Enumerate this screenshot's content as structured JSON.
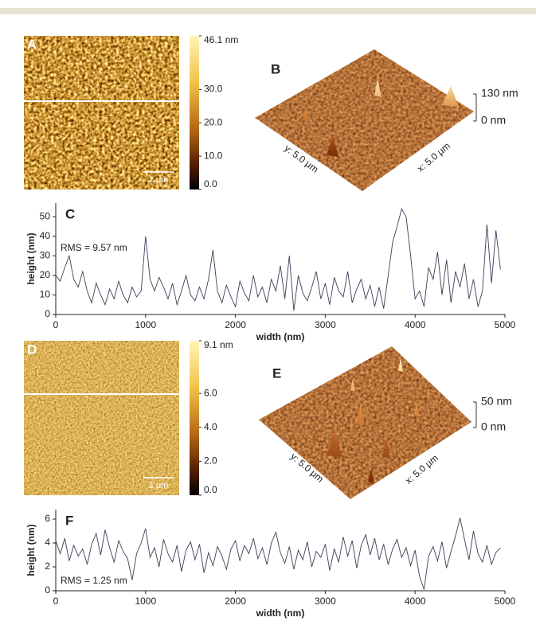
{
  "images": [
    {
      "label": "A",
      "scale_bar": "1 μm",
      "colorbar": {
        "lim": [
          0,
          46.1
        ],
        "ticks": [
          {
            "value": 46.1,
            "label": "46.1 nm"
          },
          {
            "value": 30,
            "label": "30.0"
          },
          {
            "value": 20,
            "label": "20.0"
          },
          {
            "value": 10,
            "label": "10.0"
          },
          {
            "value": 0,
            "label": "0.0"
          }
        ]
      }
    },
    {
      "label": "D",
      "scale_bar": "1 μm",
      "colorbar": {
        "lim": [
          0,
          9.1
        ],
        "ticks": [
          {
            "value": 9.1,
            "label": "9.1 nm"
          },
          {
            "value": 6,
            "label": "6.0"
          },
          {
            "value": 4,
            "label": "4.0"
          },
          {
            "value": 2,
            "label": "2.0"
          },
          {
            "value": 0,
            "label": "0.0"
          }
        ]
      }
    }
  ],
  "surfaces": [
    {
      "label": "B",
      "zlim": [
        0,
        130
      ],
      "zticks": [
        {
          "value": 130,
          "label": "130 nm"
        },
        {
          "value": 0,
          "label": "0 nm"
        }
      ],
      "x_label": "x: 5.0 μm",
      "y_label": "y: 5.0 μm"
    },
    {
      "label": "E",
      "zlim": [
        0,
        50
      ],
      "zticks": [
        {
          "value": 50,
          "label": "50 nm"
        },
        {
          "value": 0,
          "label": "0 nm"
        }
      ],
      "x_label": "x: 5.0 μm",
      "y_label": "y: 5.0 μm"
    }
  ],
  "chart_data": [
    {
      "type": "line",
      "label": "C",
      "annotation": "RMS = 9.57 nm",
      "xlabel": "width (nm)",
      "ylabel": "height (nm)",
      "color": "#3a3f55",
      "xlim": [
        0,
        5000
      ],
      "xticks": [
        0,
        1000,
        2000,
        3000,
        4000,
        5000
      ],
      "ylim": [
        0,
        57
      ],
      "yticks": [
        0,
        10,
        20,
        30,
        40,
        50
      ],
      "x": [
        0,
        50,
        100,
        150,
        200,
        250,
        300,
        350,
        400,
        450,
        500,
        550,
        600,
        650,
        700,
        750,
        800,
        850,
        900,
        950,
        1000,
        1050,
        1100,
        1150,
        1200,
        1250,
        1300,
        1350,
        1400,
        1450,
        1500,
        1550,
        1600,
        1650,
        1700,
        1750,
        1800,
        1850,
        1900,
        1950,
        2000,
        2050,
        2100,
        2150,
        2200,
        2250,
        2300,
        2350,
        2400,
        2450,
        2500,
        2550,
        2600,
        2650,
        2700,
        2750,
        2800,
        2850,
        2900,
        2950,
        3000,
        3050,
        3100,
        3150,
        3200,
        3250,
        3300,
        3350,
        3400,
        3450,
        3500,
        3550,
        3600,
        3650,
        3700,
        3750,
        3800,
        3850,
        3900,
        3950,
        4000,
        4050,
        4100,
        4150,
        4200,
        4250,
        4300,
        4350,
        4400,
        4450,
        4500,
        4550,
        4600,
        4650,
        4700,
        4750,
        4800,
        4850,
        4900,
        4950
      ],
      "values": [
        20,
        17,
        24,
        30,
        18,
        14,
        22,
        12,
        6,
        16,
        10,
        5,
        13,
        8,
        17,
        10,
        6,
        14,
        9,
        12,
        40,
        18,
        12,
        19,
        14,
        8,
        16,
        5,
        12,
        20,
        10,
        7,
        14,
        8,
        18,
        33,
        12,
        6,
        15,
        9,
        4,
        17,
        11,
        7,
        20,
        9,
        14,
        6,
        18,
        12,
        25,
        8,
        30,
        2,
        20,
        11,
        7,
        14,
        22,
        8,
        16,
        5,
        19,
        12,
        9,
        22,
        6,
        13,
        18,
        8,
        15,
        4,
        14,
        3,
        20,
        37,
        45,
        54,
        50,
        30,
        8,
        12,
        4,
        24,
        18,
        32,
        10,
        28,
        6,
        22,
        14,
        26,
        8,
        18,
        4,
        12,
        46,
        16,
        43,
        23
      ]
    },
    {
      "type": "line",
      "label": "F",
      "annotation": "RMS = 1.25 nm",
      "xlabel": "width (nm)",
      "ylabel": "height (nm)",
      "color": "#3a3f55",
      "xlim": [
        0,
        5000
      ],
      "xticks": [
        0,
        1000,
        2000,
        3000,
        4000,
        5000
      ],
      "ylim": [
        0,
        6.8
      ],
      "yticks": [
        0,
        2,
        4,
        6
      ],
      "x": [
        0,
        50,
        100,
        150,
        200,
        250,
        300,
        350,
        400,
        450,
        500,
        550,
        600,
        650,
        700,
        750,
        800,
        850,
        900,
        950,
        1000,
        1050,
        1100,
        1150,
        1200,
        1250,
        1300,
        1350,
        1400,
        1450,
        1500,
        1550,
        1600,
        1650,
        1700,
        1750,
        1800,
        1850,
        1900,
        1950,
        2000,
        2050,
        2100,
        2150,
        2200,
        2250,
        2300,
        2350,
        2400,
        2450,
        2500,
        2550,
        2600,
        2650,
        2700,
        2750,
        2800,
        2850,
        2900,
        2950,
        3000,
        3050,
        3100,
        3150,
        3200,
        3250,
        3300,
        3350,
        3400,
        3450,
        3500,
        3550,
        3600,
        3650,
        3700,
        3750,
        3800,
        3850,
        3900,
        3950,
        4000,
        4050,
        4100,
        4150,
        4200,
        4250,
        4300,
        4350,
        4400,
        4450,
        4500,
        4550,
        4600,
        4650,
        4700,
        4750,
        4800,
        4850,
        4900,
        4950
      ],
      "values": [
        4.2,
        3.1,
        4.4,
        2.5,
        3.8,
        2.9,
        3.5,
        2.2,
        3.9,
        4.8,
        3.0,
        5.1,
        3.6,
        2.4,
        4.2,
        3.3,
        2.7,
        0.9,
        3.1,
        4.0,
        5.2,
        2.8,
        3.6,
        2.0,
        4.3,
        3.1,
        2.4,
        3.8,
        1.6,
        3.4,
        4.1,
        2.6,
        3.9,
        1.5,
        3.2,
        2.1,
        3.7,
        2.9,
        1.8,
        3.5,
        4.2,
        2.5,
        3.8,
        3.1,
        4.4,
        2.7,
        3.6,
        2.2,
        4.0,
        4.9,
        3.2,
        2.3,
        3.7,
        1.8,
        3.4,
        2.6,
        4.1,
        2.0,
        3.3,
        2.8,
        3.9,
        1.7,
        3.5,
        2.4,
        4.5,
        2.9,
        4.2,
        1.9,
        3.8,
        4.7,
        3.0,
        4.4,
        2.6,
        3.9,
        2.2,
        3.5,
        4.3,
        2.8,
        3.6,
        2.1,
        3.4,
        1.2,
        0.1,
        2.9,
        3.7,
        2.5,
        4.1,
        1.9,
        3.3,
        4.6,
        6.1,
        4.3,
        2.6,
        5.0,
        3.1,
        2.4,
        3.8,
        2.2,
        3.2,
        3.6
      ]
    }
  ]
}
